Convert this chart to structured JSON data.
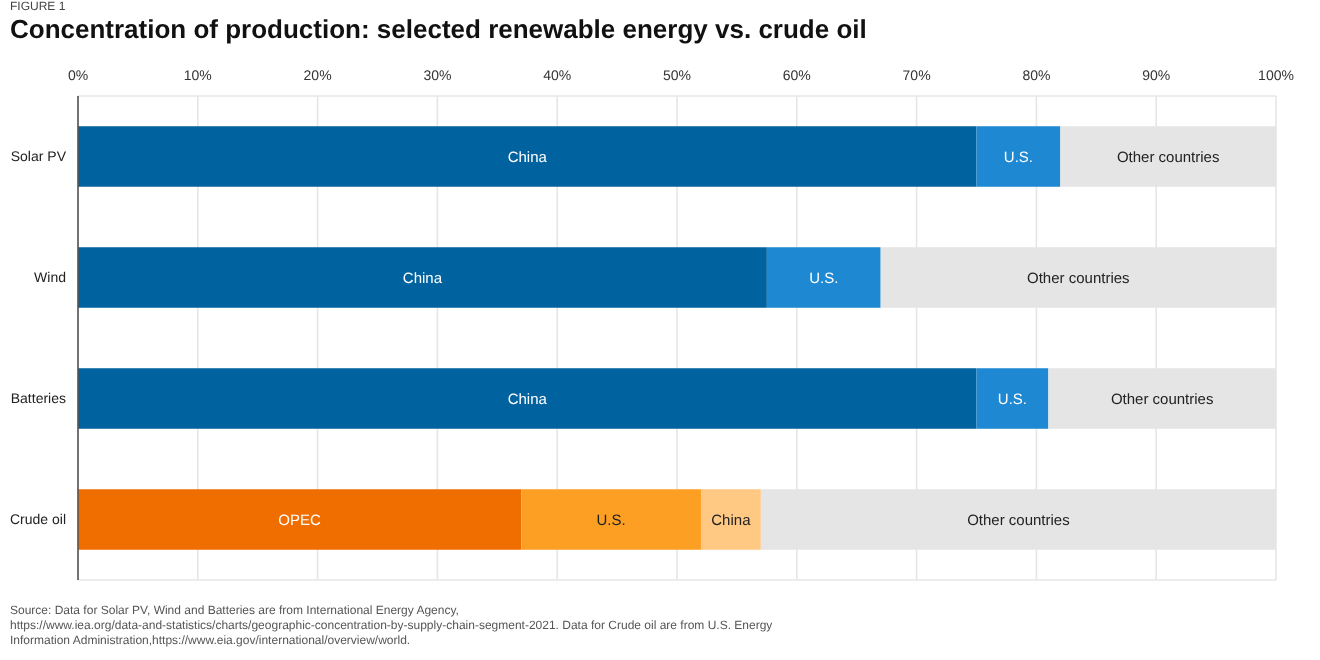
{
  "chart_data": {
    "type": "bar",
    "orientation": "horizontal",
    "stacked": true,
    "title": "Concentration of production: selected renewable energy vs. crude oil",
    "categories": [
      "Solar PV",
      "Wind",
      "Batteries",
      "Crude oil"
    ],
    "series": [
      {
        "values": [
          75,
          57.5,
          75,
          37
        ],
        "colors": [
          "#00629e",
          "#00629e",
          "#00629e",
          "#f06e00"
        ],
        "value_labels": [
          "China",
          "China",
          "China",
          "OPEC"
        ]
      },
      {
        "values": [
          7,
          9.5,
          6,
          15
        ],
        "colors": [
          "#1e88d2",
          "#1e88d2",
          "#1e88d2",
          "#fd9f22"
        ],
        "value_labels": [
          "U.S.",
          "U.S.",
          "U.S.",
          "U.S."
        ]
      },
      {
        "values": [
          null,
          null,
          null,
          5
        ],
        "color": "#ffc983",
        "value_labels": [
          null,
          null,
          null,
          "China"
        ]
      },
      {
        "values": [
          18,
          33,
          19,
          43
        ],
        "color": "#e5e5e5",
        "value_labels": [
          "Other countries",
          "Other countries",
          "Other countries",
          "Other countries"
        ]
      }
    ],
    "xlim": [
      0,
      100
    ],
    "xticks": [
      {
        "value": 0,
        "label": "0%"
      },
      {
        "value": 10,
        "label": "10%"
      },
      {
        "value": 20,
        "label": "20%"
      },
      {
        "value": 30,
        "label": "30%"
      },
      {
        "value": 40,
        "label": "40%"
      },
      {
        "value": 50,
        "label": "50%"
      },
      {
        "value": 60,
        "label": "60%"
      },
      {
        "value": 70,
        "label": "70%"
      },
      {
        "value": 80,
        "label": "80%"
      },
      {
        "value": 90,
        "label": "90%"
      },
      {
        "value": 100,
        "label": "100%"
      }
    ],
    "grid": "x",
    "annotations": [
      "FIGURE 1",
      "Source: Data for Solar PV, Wind and Batteries are from International Energy Agency, https://www.iea.org/data-and-statistics/charts/geographic-concentration-by-supply-chain-segment-2021. Data for Crude oil are from U.S. Energy Information Administration,https://www.eia.gov/international/overview/world."
    ]
  }
}
